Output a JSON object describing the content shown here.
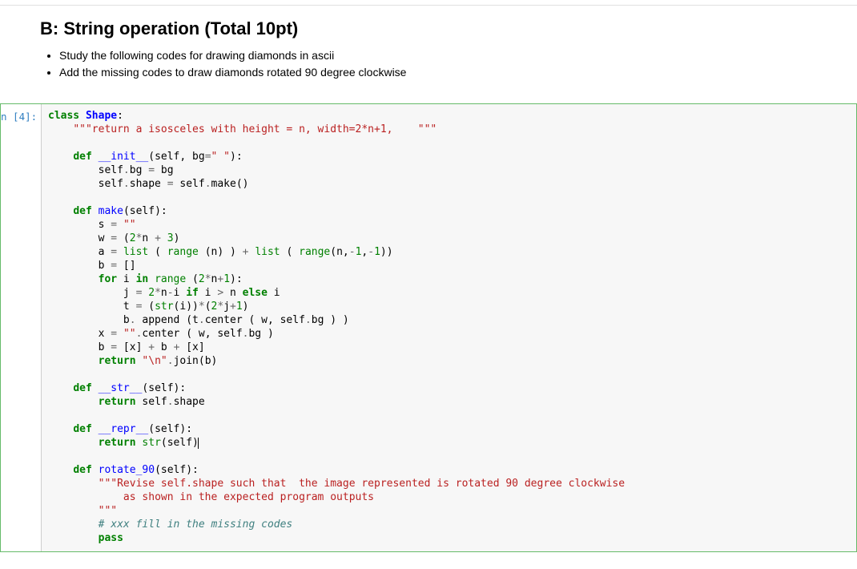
{
  "markdown": {
    "heading": "B: String operation (Total 10pt)",
    "bullets": [
      "Study the following codes for drawing diamonds in ascii",
      "Add the missing codes to draw diamonds rotated 90 degree clockwise"
    ]
  },
  "cell": {
    "prompt": "n [4]:",
    "colors": {
      "keyword": "#008000",
      "classname": "#0000ff",
      "funcname": "#0000ff",
      "builtin": "#008000",
      "string": "#ba2121",
      "comment": "#408080",
      "operator": "#666666",
      "text": "#000000",
      "cell_border": "#66bb6a",
      "code_bg": "#f7f7f7",
      "prompt_color": "#307fc1"
    },
    "code_lines": [
      [
        [
          "k",
          "class"
        ],
        [
          "n",
          " "
        ],
        [
          "nc",
          "Shape"
        ],
        [
          "n",
          ":"
        ]
      ],
      [
        [
          "n",
          "    "
        ],
        [
          "s",
          "\"\"\"return a isosceles with height = n, width=2*n+1,    \"\"\""
        ]
      ],
      [
        [
          "n",
          ""
        ]
      ],
      [
        [
          "n",
          "    "
        ],
        [
          "k",
          "def"
        ],
        [
          "n",
          " "
        ],
        [
          "fn",
          "__init__"
        ],
        [
          "n",
          "(self, bg"
        ],
        [
          "op",
          "="
        ],
        [
          "s",
          "\" \""
        ],
        [
          "n",
          "):"
        ]
      ],
      [
        [
          "n",
          "        self"
        ],
        [
          "op",
          "."
        ],
        [
          "n",
          "bg "
        ],
        [
          "op",
          "="
        ],
        [
          "n",
          " bg"
        ]
      ],
      [
        [
          "n",
          "        self"
        ],
        [
          "op",
          "."
        ],
        [
          "n",
          "shape "
        ],
        [
          "op",
          "="
        ],
        [
          "n",
          " self"
        ],
        [
          "op",
          "."
        ],
        [
          "n",
          "make()"
        ]
      ],
      [
        [
          "n",
          ""
        ]
      ],
      [
        [
          "n",
          "    "
        ],
        [
          "k",
          "def"
        ],
        [
          "n",
          " "
        ],
        [
          "fn",
          "make"
        ],
        [
          "n",
          "(self):"
        ]
      ],
      [
        [
          "n",
          "        s "
        ],
        [
          "op",
          "="
        ],
        [
          "n",
          " "
        ],
        [
          "s",
          "\"\""
        ]
      ],
      [
        [
          "n",
          "        w "
        ],
        [
          "op",
          "="
        ],
        [
          "n",
          " ("
        ],
        [
          "num",
          "2"
        ],
        [
          "op",
          "*"
        ],
        [
          "n",
          "n "
        ],
        [
          "op",
          "+"
        ],
        [
          "n",
          " "
        ],
        [
          "num",
          "3"
        ],
        [
          "n",
          ")"
        ]
      ],
      [
        [
          "n",
          "        a "
        ],
        [
          "op",
          "="
        ],
        [
          "n",
          " "
        ],
        [
          "bi",
          "list"
        ],
        [
          "n",
          " ( "
        ],
        [
          "bi",
          "range"
        ],
        [
          "n",
          " (n) ) "
        ],
        [
          "op",
          "+"
        ],
        [
          "n",
          " "
        ],
        [
          "bi",
          "list"
        ],
        [
          "n",
          " ( "
        ],
        [
          "bi",
          "range"
        ],
        [
          "n",
          "(n,"
        ],
        [
          "op",
          "-"
        ],
        [
          "num",
          "1"
        ],
        [
          "n",
          ","
        ],
        [
          "op",
          "-"
        ],
        [
          "num",
          "1"
        ],
        [
          "n",
          "))"
        ]
      ],
      [
        [
          "n",
          "        b "
        ],
        [
          "op",
          "="
        ],
        [
          "n",
          " []"
        ]
      ],
      [
        [
          "n",
          "        "
        ],
        [
          "k",
          "for"
        ],
        [
          "n",
          " i "
        ],
        [
          "k",
          "in"
        ],
        [
          "n",
          " "
        ],
        [
          "bi",
          "range"
        ],
        [
          "n",
          " ("
        ],
        [
          "num",
          "2"
        ],
        [
          "op",
          "*"
        ],
        [
          "n",
          "n"
        ],
        [
          "op",
          "+"
        ],
        [
          "num",
          "1"
        ],
        [
          "n",
          "):"
        ]
      ],
      [
        [
          "n",
          "            j "
        ],
        [
          "op",
          "="
        ],
        [
          "n",
          " "
        ],
        [
          "num",
          "2"
        ],
        [
          "op",
          "*"
        ],
        [
          "n",
          "n"
        ],
        [
          "op",
          "-"
        ],
        [
          "n",
          "i "
        ],
        [
          "k",
          "if"
        ],
        [
          "n",
          " i "
        ],
        [
          "op",
          ">"
        ],
        [
          "n",
          " n "
        ],
        [
          "k",
          "else"
        ],
        [
          "n",
          " i"
        ]
      ],
      [
        [
          "n",
          "            t "
        ],
        [
          "op",
          "="
        ],
        [
          "n",
          " ("
        ],
        [
          "bi",
          "str"
        ],
        [
          "n",
          "(i))"
        ],
        [
          "op",
          "*"
        ],
        [
          "n",
          "("
        ],
        [
          "num",
          "2"
        ],
        [
          "op",
          "*"
        ],
        [
          "n",
          "j"
        ],
        [
          "op",
          "+"
        ],
        [
          "num",
          "1"
        ],
        [
          "n",
          ")"
        ]
      ],
      [
        [
          "n",
          "            b"
        ],
        [
          "op",
          "."
        ],
        [
          "n",
          " append (t"
        ],
        [
          "op",
          "."
        ],
        [
          "n",
          "center ( w, self"
        ],
        [
          "op",
          "."
        ],
        [
          "n",
          "bg ) )"
        ]
      ],
      [
        [
          "n",
          "        x "
        ],
        [
          "op",
          "="
        ],
        [
          "n",
          " "
        ],
        [
          "s",
          "\"\""
        ],
        [
          "op",
          "."
        ],
        [
          "n",
          "center ( w, self"
        ],
        [
          "op",
          "."
        ],
        [
          "n",
          "bg )"
        ]
      ],
      [
        [
          "n",
          "        b "
        ],
        [
          "op",
          "="
        ],
        [
          "n",
          " [x] "
        ],
        [
          "op",
          "+"
        ],
        [
          "n",
          " b "
        ],
        [
          "op",
          "+"
        ],
        [
          "n",
          " [x]"
        ]
      ],
      [
        [
          "n",
          "        "
        ],
        [
          "k",
          "return"
        ],
        [
          "n",
          " "
        ],
        [
          "s",
          "\"\\n\""
        ],
        [
          "op",
          "."
        ],
        [
          "n",
          "join(b)"
        ]
      ],
      [
        [
          "n",
          ""
        ]
      ],
      [
        [
          "n",
          "    "
        ],
        [
          "k",
          "def"
        ],
        [
          "n",
          " "
        ],
        [
          "fn",
          "__str__"
        ],
        [
          "n",
          "(self):"
        ]
      ],
      [
        [
          "n",
          "        "
        ],
        [
          "k",
          "return"
        ],
        [
          "n",
          " self"
        ],
        [
          "op",
          "."
        ],
        [
          "n",
          "shape"
        ]
      ],
      [
        [
          "n",
          ""
        ]
      ],
      [
        [
          "n",
          "    "
        ],
        [
          "k",
          "def"
        ],
        [
          "n",
          " "
        ],
        [
          "fn",
          "__repr__"
        ],
        [
          "n",
          "(self):"
        ]
      ],
      [
        [
          "n",
          "        "
        ],
        [
          "k",
          "return"
        ],
        [
          "n",
          " "
        ],
        [
          "bi",
          "str"
        ],
        [
          "n",
          "(self)"
        ],
        [
          "cursor",
          ""
        ]
      ],
      [
        [
          "n",
          ""
        ]
      ],
      [
        [
          "n",
          "    "
        ],
        [
          "k",
          "def"
        ],
        [
          "n",
          " "
        ],
        [
          "fn",
          "rotate_90"
        ],
        [
          "n",
          "(self):"
        ]
      ],
      [
        [
          "n",
          "        "
        ],
        [
          "s",
          "\"\"\"Revise self.shape such that  the image represented is rotated 90 degree clockwise"
        ]
      ],
      [
        [
          "n",
          "        "
        ],
        [
          "s",
          "    as shown in the expected program outputs"
        ]
      ],
      [
        [
          "n",
          "        "
        ],
        [
          "s",
          "\"\"\""
        ]
      ],
      [
        [
          "n",
          "        "
        ],
        [
          "c",
          "# xxx fill in the missing codes"
        ]
      ],
      [
        [
          "n",
          "        "
        ],
        [
          "k",
          "pass"
        ]
      ]
    ]
  }
}
